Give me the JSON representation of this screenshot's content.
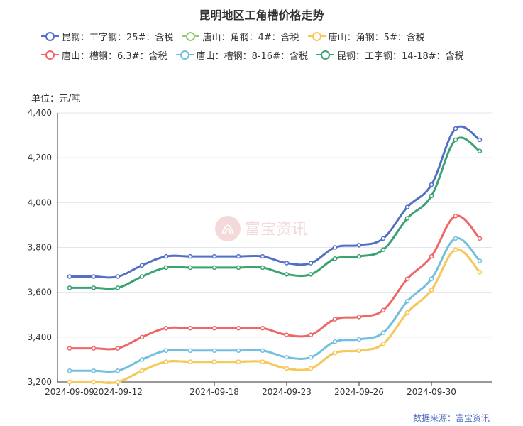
{
  "chart_data": {
    "type": "line",
    "title": "昆明地区工角槽价格走势",
    "unit_label": "单位：元/吨",
    "source": "数据来源：富宝资讯",
    "watermark": "富宝资讯",
    "ylim": [
      3200,
      4400
    ],
    "y_ticks": [
      3200,
      3400,
      3600,
      3800,
      4000,
      4200,
      4400
    ],
    "y_tick_labels": [
      "3,200",
      "3,400",
      "3,600",
      "3,800",
      "4,000",
      "4,200",
      "4,400"
    ],
    "x_tick_labels": [
      "2024-09-09",
      "2024-09-12",
      "2024-09-18",
      "2024-09-23",
      "2024-09-26",
      "2024-09-30"
    ],
    "x_tick_positions": [
      0,
      2,
      6,
      9,
      12,
      15
    ],
    "x_count": 18,
    "grid": true,
    "legend_position": "top",
    "series": [
      {
        "name": "昆钢：工字钢：25#：含税",
        "color": "#5470c6",
        "values": [
          3670,
          3670,
          3670,
          3720,
          3760,
          3760,
          3760,
          3760,
          3760,
          3730,
          3730,
          3800,
          3810,
          3840,
          3980,
          4080,
          4330,
          4280
        ]
      },
      {
        "name": "唐山：角钢：4#：含税",
        "color": "#91cc75",
        "values": [
          3200,
          3200,
          3200,
          3250,
          3290,
          3290,
          3290,
          3290,
          3290,
          3260,
          3260,
          3330,
          3340,
          3370,
          3510,
          3610,
          3790,
          3690
        ]
      },
      {
        "name": "唐山：角钢：5#：含税",
        "color": "#fac858",
        "values": [
          3200,
          3200,
          3200,
          3250,
          3290,
          3290,
          3290,
          3290,
          3290,
          3260,
          3260,
          3330,
          3340,
          3370,
          3510,
          3610,
          3790,
          3690
        ]
      },
      {
        "name": "唐山：槽钢：6.3#：含税",
        "color": "#ee6666",
        "values": [
          3350,
          3350,
          3350,
          3400,
          3440,
          3440,
          3440,
          3440,
          3440,
          3410,
          3410,
          3480,
          3490,
          3520,
          3660,
          3760,
          3940,
          3840
        ]
      },
      {
        "name": "唐山：槽钢：8-16#：含税",
        "color": "#73c0de",
        "values": [
          3250,
          3250,
          3250,
          3300,
          3340,
          3340,
          3340,
          3340,
          3340,
          3310,
          3310,
          3380,
          3390,
          3420,
          3560,
          3660,
          3840,
          3740
        ]
      },
      {
        "name": "昆钢：工字钢：14-18#：含税",
        "color": "#3ba272",
        "values": [
          3620,
          3620,
          3620,
          3670,
          3710,
          3710,
          3710,
          3710,
          3710,
          3680,
          3680,
          3750,
          3760,
          3790,
          3930,
          4030,
          4280,
          4230
        ]
      }
    ]
  }
}
